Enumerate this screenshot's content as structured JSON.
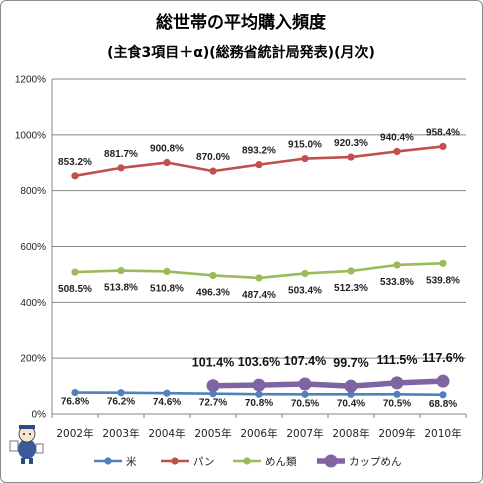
{
  "chart_data": {
    "type": "line",
    "title": "総世帯の平均購入頻度",
    "subtitle": "(主食3項目＋α)(総務省統計局発表)(月次)",
    "xlabel": "",
    "ylabel": "",
    "categories": [
      "2002年",
      "2003年",
      "2004年",
      "2005年",
      "2006年",
      "2007年",
      "2008年",
      "2009年",
      "2010年"
    ],
    "ylim": [
      0,
      1200
    ],
    "yticks": [
      0,
      200,
      400,
      600,
      800,
      1000,
      1200
    ],
    "ytick_labels": [
      "0%",
      "200%",
      "400%",
      "600%",
      "800%",
      "1000%",
      "1200%"
    ],
    "grid": "horizontal",
    "legend_position": "bottom",
    "series": [
      {
        "name": "米",
        "color": "#4f81bd",
        "values": [
          76.8,
          76.2,
          74.6,
          72.7,
          70.8,
          70.5,
          70.4,
          70.5,
          68.8
        ],
        "labels": [
          "76.8%",
          "76.2%",
          "74.6%",
          "72.7%",
          "70.8%",
          "70.5%",
          "70.4%",
          "70.5%",
          "68.8%"
        ]
      },
      {
        "name": "パン",
        "color": "#c0504d",
        "values": [
          853.2,
          881.7,
          900.8,
          870.0,
          893.2,
          915.0,
          920.3,
          940.4,
          958.4
        ],
        "labels": [
          "853.2%",
          "881.7%",
          "900.8%",
          "870.0%",
          "893.2%",
          "915.0%",
          "920.3%",
          "940.4%",
          "958.4%"
        ]
      },
      {
        "name": "めん類",
        "color": "#9bbb59",
        "values": [
          508.5,
          513.8,
          510.8,
          496.3,
          487.4,
          503.4,
          512.3,
          533.8,
          539.8
        ],
        "labels": [
          "508.5%",
          "513.8%",
          "510.8%",
          "496.3%",
          "487.4%",
          "503.4%",
          "512.3%",
          "533.8%",
          "539.8%"
        ]
      },
      {
        "name": "カップめん",
        "color": "#8064a2",
        "values": [
          null,
          null,
          null,
          101.4,
          103.6,
          107.4,
          99.7,
          111.5,
          117.6
        ],
        "labels": [
          "",
          "",
          "",
          "101.4%",
          "103.6%",
          "107.4%",
          "99.7%",
          "111.5%",
          "117.6%"
        ]
      }
    ]
  }
}
